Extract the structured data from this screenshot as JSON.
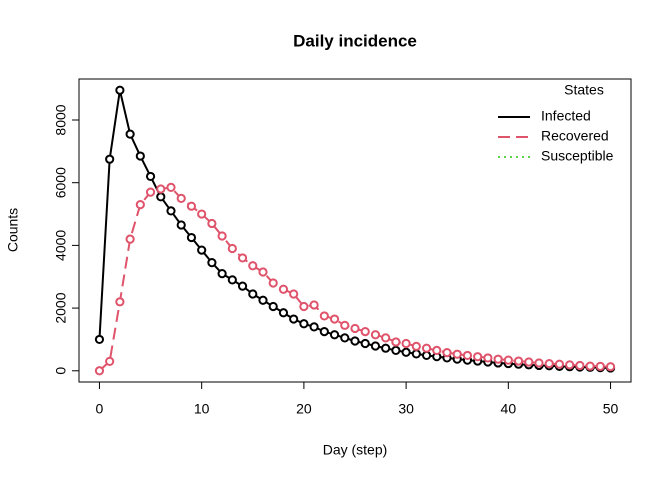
{
  "chart_data": {
    "type": "line",
    "title": "Daily incidence",
    "x_label": "Day (step)",
    "y_label": "Counts",
    "x": [
      0,
      1,
      2,
      3,
      4,
      5,
      6,
      7,
      8,
      9,
      10,
      11,
      12,
      13,
      14,
      15,
      16,
      17,
      18,
      19,
      20,
      21,
      22,
      23,
      24,
      25,
      26,
      27,
      28,
      29,
      30,
      31,
      32,
      33,
      34,
      35,
      36,
      37,
      38,
      39,
      40,
      41,
      42,
      43,
      44,
      45,
      46,
      47,
      48,
      49,
      50
    ],
    "series": [
      {
        "name": "Infected",
        "color": "#000000",
        "dash": "solid",
        "values": [
          1000,
          6750,
          8950,
          7550,
          6850,
          6200,
          5550,
          5100,
          4650,
          4250,
          3850,
          3450,
          3100,
          2900,
          2700,
          2450,
          2250,
          2050,
          1850,
          1650,
          1500,
          1400,
          1250,
          1150,
          1050,
          950,
          870,
          790,
          720,
          650,
          590,
          540,
          490,
          450,
          410,
          370,
          340,
          310,
          280,
          250,
          230,
          210,
          190,
          170,
          160,
          140,
          130,
          120,
          110,
          100,
          90
        ]
      },
      {
        "name": "Recovered",
        "color": "#DF536B",
        "dash": "dashed",
        "values": [
          0,
          300,
          2200,
          4200,
          5300,
          5700,
          5800,
          5850,
          5500,
          5250,
          5000,
          4700,
          4300,
          3900,
          3600,
          3350,
          3150,
          2800,
          2600,
          2450,
          2050,
          2100,
          1750,
          1650,
          1450,
          1350,
          1250,
          1150,
          1050,
          920,
          870,
          780,
          720,
          650,
          580,
          530,
          490,
          450,
          410,
          370,
          340,
          310,
          280,
          250,
          230,
          210,
          190,
          170,
          150,
          140,
          130
        ]
      },
      {
        "name": "Susceptible",
        "color": "#61D04F",
        "dash": "dotted"
      }
    ],
    "legend_title": "States",
    "legend_position": "top-right",
    "xlim": [
      -2,
      52
    ],
    "xticks": [
      0,
      10,
      20,
      30,
      40,
      50
    ],
    "ylim": [
      -358,
      9308
    ],
    "yticks": [
      0,
      2000,
      4000,
      6000,
      8000
    ]
  }
}
